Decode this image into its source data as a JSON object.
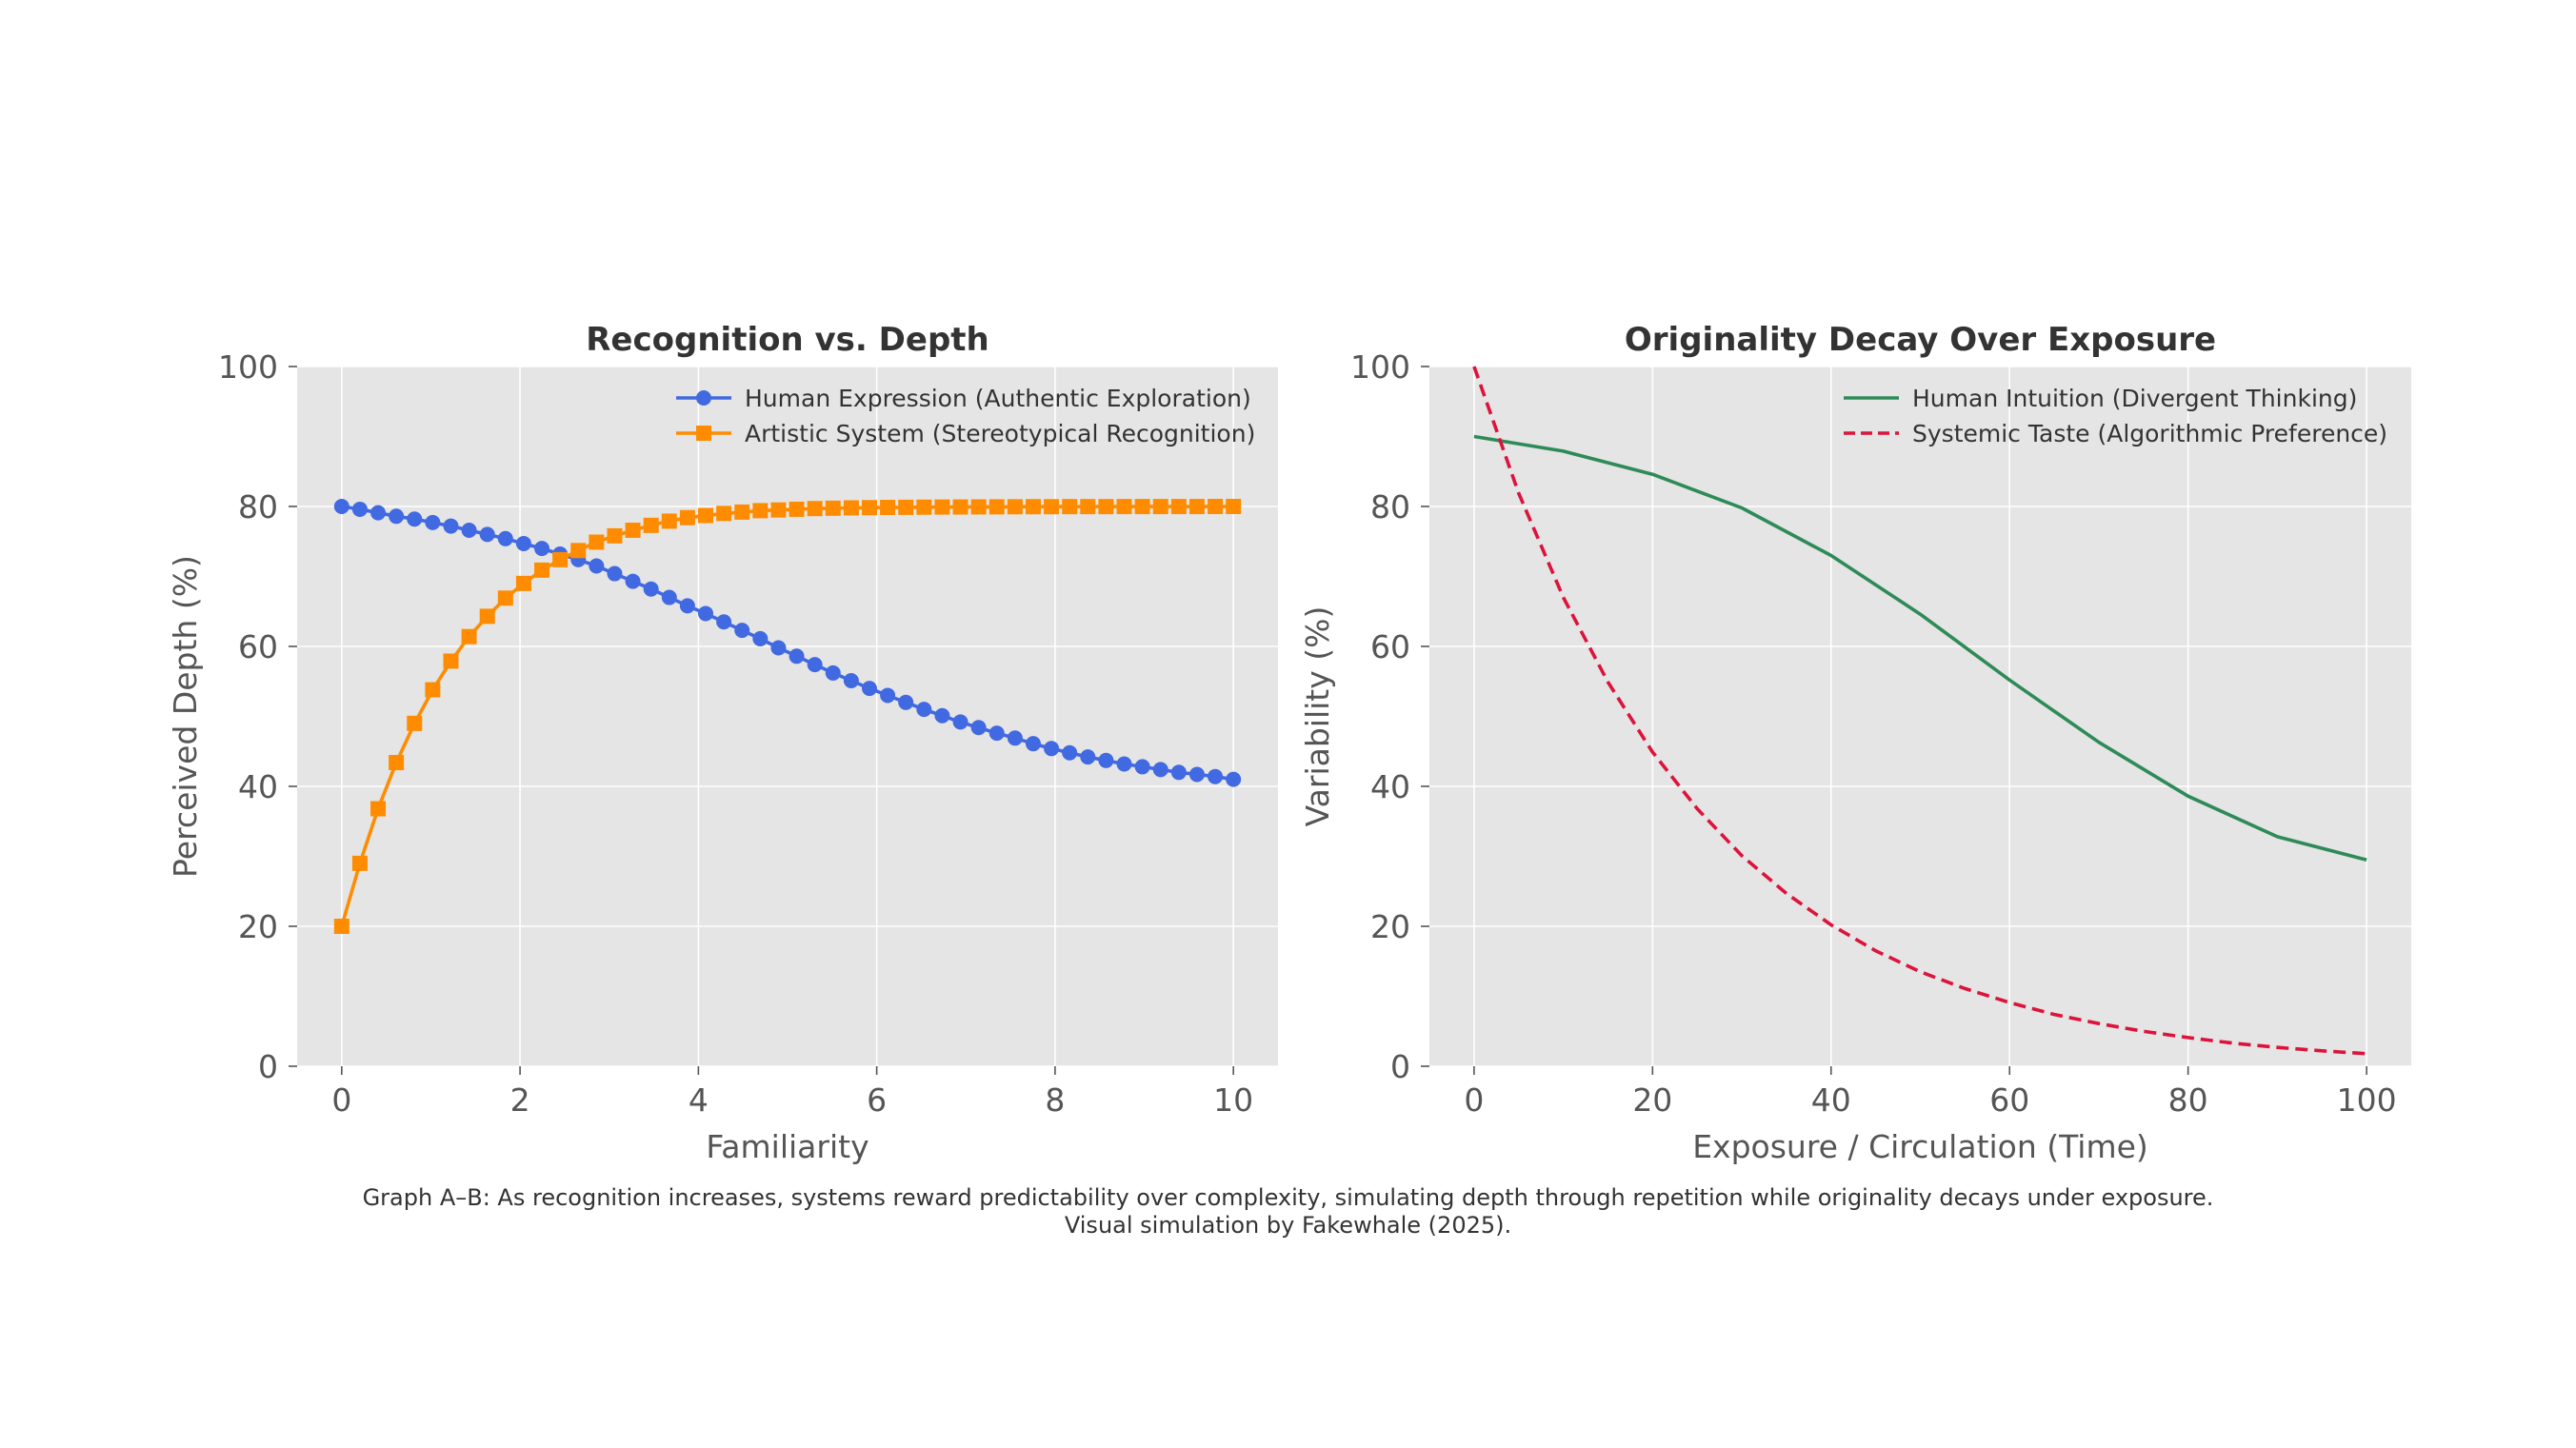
{
  "chart_data": [
    {
      "type": "line",
      "title": "Recognition vs. Depth",
      "xlabel": "Familiarity",
      "ylabel": "Perceived Depth (%)",
      "xlim": [
        -0.5,
        10.5
      ],
      "ylim": [
        0,
        100
      ],
      "xticks": [
        0,
        2,
        4,
        6,
        8,
        10
      ],
      "yticks": [
        0,
        20,
        40,
        60,
        80,
        100
      ],
      "grid": true,
      "legend_position": "top-right",
      "series": [
        {
          "name": "Human Expression (Authentic Exploration)",
          "color": "#4169e1",
          "marker": "circle",
          "x": [
            0,
            0.2041,
            0.4082,
            0.6122,
            0.8163,
            1.0204,
            1.2245,
            1.4286,
            1.6327,
            1.8367,
            2.0408,
            2.2449,
            2.449,
            2.6531,
            2.8571,
            3.0612,
            3.2653,
            3.4694,
            3.6735,
            3.8776,
            4.0816,
            4.2857,
            4.4898,
            4.6939,
            4.898,
            5.102,
            5.3061,
            5.5102,
            5.7143,
            5.9184,
            6.1224,
            6.3265,
            6.5306,
            6.7347,
            6.9388,
            7.1429,
            7.3469,
            7.551,
            7.7551,
            7.9592,
            8.1633,
            8.3673,
            8.5714,
            8.7755,
            8.9796,
            9.1837,
            9.3878,
            9.5918,
            9.7959,
            10
          ],
          "y": [
            80,
            79.6,
            79.1,
            78.6,
            78.2,
            77.7,
            77.2,
            76.6,
            76.0,
            75.4,
            74.7,
            74.0,
            73.2,
            72.4,
            71.5,
            70.4,
            69.3,
            68.2,
            67.0,
            65.8,
            64.7,
            63.5,
            62.3,
            61.1,
            59.8,
            58.6,
            57.4,
            56.2,
            55.1,
            54.0,
            53.0,
            52.0,
            51.0,
            50.1,
            49.2,
            48.4,
            47.6,
            46.9,
            46.1,
            45.4,
            44.8,
            44.2,
            43.7,
            43.2,
            42.8,
            42.4,
            42.0,
            41.7,
            41.4,
            41.0
          ]
        },
        {
          "name": "Artistic System (Stereotypical Recognition)",
          "color": "#ff8c00",
          "marker": "square",
          "x": [
            0,
            0.2041,
            0.4082,
            0.6122,
            0.8163,
            1.0204,
            1.2245,
            1.4286,
            1.6327,
            1.8367,
            2.0408,
            2.2449,
            2.449,
            2.6531,
            2.8571,
            3.0612,
            3.2653,
            3.4694,
            3.6735,
            3.8776,
            4.0816,
            4.2857,
            4.4898,
            4.6939,
            4.898,
            5.102,
            5.3061,
            5.5102,
            5.7143,
            5.9184,
            6.1224,
            6.3265,
            6.5306,
            6.7347,
            6.9388,
            7.1429,
            7.3469,
            7.551,
            7.7551,
            7.9592,
            8.1633,
            8.3673,
            8.5714,
            8.7755,
            8.9796,
            9.1837,
            9.3878,
            9.5918,
            9.7959,
            10
          ],
          "y": [
            20,
            29.0,
            36.8,
            43.4,
            49.0,
            53.8,
            57.9,
            61.4,
            64.3,
            66.9,
            69.0,
            70.9,
            72.4,
            73.7,
            74.9,
            75.8,
            76.6,
            77.3,
            77.9,
            78.4,
            78.7,
            79.0,
            79.2,
            79.4,
            79.5,
            79.6,
            79.7,
            79.75,
            79.8,
            79.83,
            79.86,
            79.88,
            79.9,
            79.92,
            79.93,
            79.94,
            79.95,
            79.96,
            79.97,
            79.97,
            79.98,
            79.98,
            79.98,
            79.99,
            79.99,
            79.99,
            79.99,
            79.99,
            80,
            80
          ]
        }
      ]
    },
    {
      "type": "line",
      "title": "Originality Decay Over Exposure",
      "xlabel": "Exposure / Circulation (Time)",
      "ylabel": "Variability (%)",
      "xlim": [
        -5,
        105
      ],
      "ylim": [
        0,
        100
      ],
      "xticks": [
        0,
        20,
        40,
        60,
        80,
        100
      ],
      "yticks": [
        0,
        20,
        40,
        60,
        80,
        100
      ],
      "grid": true,
      "legend_position": "top-right",
      "series": [
        {
          "name": "Human Intuition (Divergent Thinking)",
          "color": "#2e8b57",
          "line_style": "solid",
          "x": [
            0,
            10,
            20,
            30,
            40,
            50,
            60,
            70,
            80,
            90,
            100
          ],
          "y": [
            90.0,
            87.9,
            84.6,
            79.8,
            73.0,
            64.6,
            55.2,
            46.3,
            38.6,
            32.8,
            29.5
          ]
        },
        {
          "name": "Systemic Taste (Algorithmic Preference)",
          "color": "#dc143c",
          "line_style": "dashed",
          "x": [
            0,
            5,
            10,
            15,
            20,
            25,
            30,
            35,
            40,
            45,
            50,
            55,
            60,
            65,
            70,
            75,
            80,
            85,
            90,
            95,
            100
          ],
          "y": [
            100,
            81.9,
            67.0,
            54.9,
            44.9,
            36.8,
            30.1,
            24.7,
            20.2,
            16.5,
            13.5,
            11.1,
            9.1,
            7.4,
            6.1,
            5.0,
            4.1,
            3.3,
            2.7,
            2.2,
            1.8
          ]
        }
      ]
    }
  ],
  "caption": {
    "line1": "Graph A–B: As recognition increases, systems reward predictability over complexity, simulating depth through repetition while originality decays under exposure.",
    "line2": "Visual simulation by Fakewhale (2025)."
  }
}
